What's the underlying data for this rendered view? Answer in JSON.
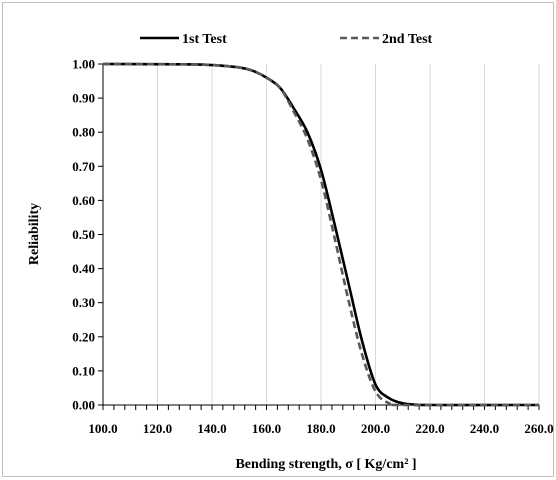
{
  "chart_data": {
    "type": "line",
    "xlabel": "Bending strength, σ  [ Kg/cm² ]",
    "ylabel": "Reliability",
    "xlim": [
      100,
      260
    ],
    "ylim": [
      0,
      1
    ],
    "x_ticks": [
      "100.0",
      "120.0",
      "140.0",
      "160.0",
      "180.0",
      "200.0",
      "220.0",
      "240.0",
      "260.0"
    ],
    "y_ticks": [
      "0.00",
      "0.10",
      "0.20",
      "0.30",
      "0.40",
      "0.50",
      "0.60",
      "0.70",
      "0.80",
      "0.90",
      "1.00"
    ],
    "grid": "vertical",
    "legend": "top",
    "series": [
      {
        "name": "1st Test",
        "style": "solid",
        "color": "#000000",
        "x": [
          100,
          130,
          140,
          150,
          155,
          160,
          165,
          170,
          175,
          180,
          185,
          190,
          195,
          200,
          205,
          210,
          215,
          220,
          260
        ],
        "y": [
          1.0,
          0.999,
          0.997,
          0.99,
          0.98,
          0.96,
          0.93,
          0.87,
          0.8,
          0.69,
          0.53,
          0.36,
          0.19,
          0.06,
          0.02,
          0.005,
          0.001,
          0.0,
          0.0
        ]
      },
      {
        "name": "2nd Test",
        "style": "dashed",
        "color": "#595959",
        "x": [
          100,
          130,
          140,
          150,
          155,
          160,
          165,
          170,
          175,
          180,
          185,
          190,
          195,
          200,
          205,
          210,
          260
        ],
        "y": [
          1.0,
          0.999,
          0.997,
          0.99,
          0.98,
          0.96,
          0.93,
          0.86,
          0.78,
          0.66,
          0.49,
          0.31,
          0.15,
          0.04,
          0.005,
          0.0,
          0.0
        ]
      }
    ]
  }
}
